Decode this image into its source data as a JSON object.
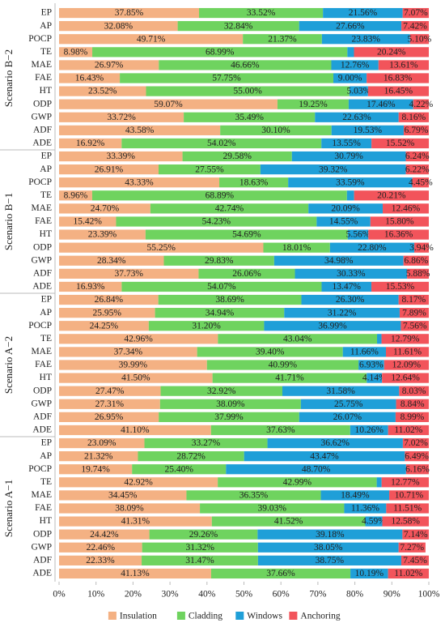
{
  "chart_data": {
    "type": "stacked-barh",
    "series": [
      {
        "name": "Insulation",
        "color": "#f4b183"
      },
      {
        "name": "Cladding",
        "color": "#6fd35f"
      },
      {
        "name": "Windows",
        "color": "#1f9fd8"
      },
      {
        "name": "Anchoring",
        "color": "#f2545b"
      }
    ],
    "xlim": [
      0,
      100
    ],
    "xticks": [
      {
        "value": 0,
        "label": "0%"
      },
      {
        "value": 10,
        "label": "10%"
      },
      {
        "value": 20,
        "label": "20%"
      },
      {
        "value": 30,
        "label": "30%"
      },
      {
        "value": 40,
        "label": "40%"
      },
      {
        "value": 50,
        "label": "50%"
      },
      {
        "value": 60,
        "label": "60%"
      },
      {
        "value": 70,
        "label": "70%"
      },
      {
        "value": 80,
        "label": "80%"
      },
      {
        "value": 90,
        "label": "90%"
      },
      {
        "value": 100,
        "label": "100%"
      }
    ],
    "grid": false,
    "legend": "bottom",
    "groups": [
      {
        "name": "Scenario B−2",
        "categories": [
          "EP",
          "AP",
          "POCP",
          "TE",
          "MAE",
          "FAE",
          "HT",
          "ODP",
          "GWP",
          "ADF",
          "ADE"
        ],
        "values": [
          [
            37.85,
            32.08,
            49.71,
            8.98,
            26.97,
            16.43,
            23.52,
            59.07,
            33.72,
            43.58,
            16.92
          ],
          [
            33.52,
            32.84,
            21.37,
            68.99,
            46.66,
            57.75,
            55.0,
            19.25,
            35.49,
            30.1,
            54.02
          ],
          [
            21.56,
            27.66,
            23.83,
            1.79,
            12.76,
            9.0,
            5.03,
            17.46,
            22.63,
            19.53,
            13.55
          ],
          [
            7.07,
            7.42,
            5.1,
            20.24,
            13.61,
            16.83,
            16.45,
            4.22,
            8.16,
            6.79,
            15.52
          ]
        ],
        "value_labels": [
          [
            "37.85%",
            "32.08%",
            "49.71%",
            "8.98%",
            "26.97%",
            "16.43%",
            "23.52%",
            "59.07%",
            "33.72%",
            "43.58%",
            "16.92%"
          ],
          [
            "33.52%",
            "32.84%",
            "21.37%",
            "68.99%",
            "46.66%",
            "57.75%",
            "55.00%",
            "19.25%",
            "35.49%",
            "30.10%",
            "54.02%"
          ],
          [
            "21.56%",
            "27.66%",
            "23.83%",
            null,
            "12.76%",
            "9.00%",
            "5.03%",
            "17.46%",
            "22.63%",
            "19.53%",
            "13.55%"
          ],
          [
            "7.07%",
            "7.42%",
            "5.10%",
            "20.24%",
            "13.61%",
            "16.83%",
            "16.45%",
            "4.22%",
            "8.16%",
            "6.79%",
            "15.52%"
          ]
        ]
      },
      {
        "name": "Scenario B−1",
        "categories": [
          "EP",
          "AP",
          "POCP",
          "TE",
          "MAE",
          "FAE",
          "HT",
          "ODP",
          "GWP",
          "ADF",
          "ADE"
        ],
        "values": [
          [
            33.39,
            26.91,
            43.33,
            8.96,
            24.7,
            15.42,
            23.39,
            55.25,
            28.34,
            37.73,
            16.93
          ],
          [
            29.58,
            27.55,
            18.63,
            68.89,
            42.74,
            54.23,
            54.69,
            18.01,
            29.83,
            26.06,
            54.07
          ],
          [
            30.79,
            39.32,
            33.59,
            1.94,
            20.09,
            14.55,
            5.56,
            22.8,
            34.98,
            30.33,
            13.47
          ],
          [
            6.24,
            6.22,
            4.45,
            20.21,
            12.46,
            15.8,
            16.36,
            3.94,
            6.86,
            5.88,
            15.53
          ]
        ],
        "value_labels": [
          [
            "33.39%",
            "26.91%",
            "43.33%",
            "8.96%",
            "24.70%",
            "15.42%",
            "23.39%",
            "55.25%",
            "28.34%",
            "37.73%",
            "16.93%"
          ],
          [
            "29.58%",
            "27.55%",
            "18.63%",
            "68.89%",
            "42.74%",
            "54.23%",
            "54.69%",
            "18.01%",
            "29.83%",
            "26.06%",
            "54.07%"
          ],
          [
            "30.79%",
            "39.32%",
            "33.59%",
            null,
            "20.09%",
            "14.55%",
            "5.56%",
            "22.80%",
            "34.98%",
            "30.33%",
            "13.47%"
          ],
          [
            "6.24%",
            "6.22%",
            "4.45%",
            "20.21%",
            "12.46%",
            "15.80%",
            "16.36%",
            "3.94%",
            "6.86%",
            "5.88%",
            "15.53%"
          ]
        ]
      },
      {
        "name": "Scenario A−2",
        "categories": [
          "EP",
          "AP",
          "POCP",
          "TE",
          "MAE",
          "FAE",
          "HT",
          "ODP",
          "GWP",
          "ADF",
          "ADE"
        ],
        "values": [
          [
            26.84,
            25.95,
            24.25,
            42.96,
            37.34,
            39.99,
            41.5,
            27.47,
            27.31,
            26.95,
            41.1
          ],
          [
            38.69,
            34.94,
            31.2,
            43.04,
            39.4,
            40.99,
            41.71,
            32.92,
            38.09,
            37.99,
            37.63
          ],
          [
            26.3,
            31.22,
            36.99,
            1.21,
            11.66,
            6.93,
            4.14,
            31.58,
            25.75,
            26.07,
            10.26
          ],
          [
            8.17,
            7.89,
            7.56,
            12.79,
            11.61,
            12.09,
            12.64,
            8.03,
            8.84,
            8.99,
            11.02
          ]
        ],
        "value_labels": [
          [
            "26.84%",
            "25.95%",
            "24.25%",
            "42.96%",
            "37.34%",
            "39.99%",
            "41.50%",
            "27.47%",
            "27.31%",
            "26.95%",
            "41.10%"
          ],
          [
            "38.69%",
            "34.94%",
            "31.20%",
            "43.04%",
            "39.40%",
            "40.99%",
            "41.71%",
            "32.92%",
            "38.09%",
            "37.99%",
            "37.63%"
          ],
          [
            "26.30%",
            "31.22%",
            "36.99%",
            null,
            "11.66%",
            "6.93%",
            "4.14%",
            "31.58%",
            "25.75%",
            "26.07%",
            "10.26%"
          ],
          [
            "8.17%",
            "7.89%",
            "7.56%",
            "12.79%",
            "11.61%",
            "12.09%",
            "12.64%",
            "8.03%",
            "8.84%",
            "8.99%",
            "11.02%"
          ]
        ]
      },
      {
        "name": "Scenario A−1",
        "categories": [
          "EP",
          "AP",
          "POCP",
          "TE",
          "MAE",
          "FAE",
          "HT",
          "ODP",
          "GWP",
          "ADF",
          "ADE"
        ],
        "values": [
          [
            23.09,
            21.32,
            19.74,
            42.92,
            34.45,
            38.09,
            41.31,
            24.42,
            22.46,
            22.33,
            41.13
          ],
          [
            33.27,
            28.72,
            25.4,
            42.99,
            36.35,
            39.03,
            41.52,
            29.26,
            31.32,
            31.47,
            37.66
          ],
          [
            36.62,
            43.47,
            48.7,
            1.32,
            18.49,
            11.36,
            4.59,
            39.18,
            38.05,
            38.75,
            10.19
          ],
          [
            7.02,
            6.49,
            6.16,
            12.77,
            10.71,
            11.51,
            12.58,
            7.14,
            7.27,
            7.45,
            11.02
          ]
        ],
        "value_labels": [
          [
            "23.09%",
            "21.32%",
            "19.74%",
            "42.92%",
            "34.45%",
            "38.09%",
            "41.31%",
            "24.42%",
            "22.46%",
            "22.33%",
            "41.13%"
          ],
          [
            "33.27%",
            "28.72%",
            "25.40%",
            "42.99%",
            "36.35%",
            "39.03%",
            "41.52%",
            "29.26%",
            "31.32%",
            "31.47%",
            "37.66%"
          ],
          [
            "36.62%",
            "43.47%",
            "48.70%",
            null,
            "18.49%",
            "11.36%",
            "4.59%",
            "39.18%",
            "38.05%",
            "38.75%",
            "10.19%"
          ],
          [
            "7.02%",
            "6.49%",
            "6.16%",
            "12.77%",
            "10.71%",
            "11.51%",
            "12.58%",
            "7.14%",
            "7.27%",
            "7.45%",
            "11.02%"
          ]
        ]
      }
    ]
  }
}
